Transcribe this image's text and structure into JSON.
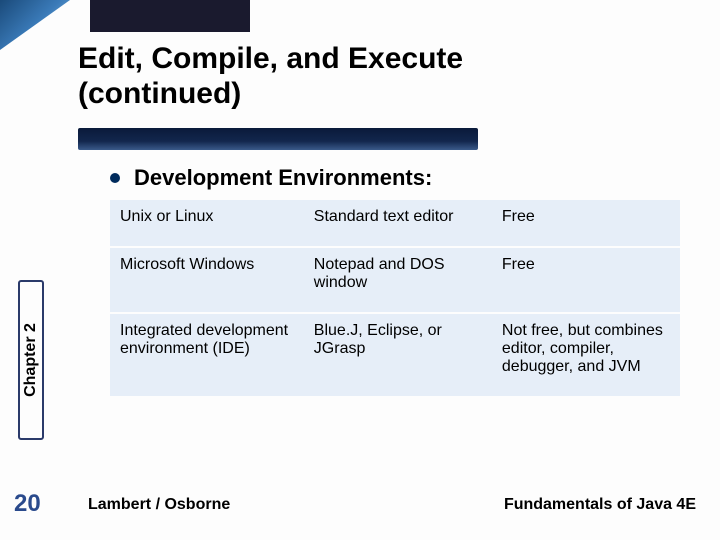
{
  "slide": {
    "title_line1": "Edit, Compile, and Execute",
    "title_line2": "(continued)",
    "bullet_heading": "Development Environments:",
    "chapter_label": "Chapter 2",
    "page_number": "20",
    "footer_left": "Lambert / Osborne",
    "footer_right": "Fundamentals of Java 4E"
  },
  "table": {
    "rows": [
      {
        "c1": "Unix or Linux",
        "c2": "Standard text editor",
        "c3": "Free"
      },
      {
        "c1": "Microsoft Windows",
        "c2": "Notepad and DOS window",
        "c3": "Free"
      },
      {
        "c1": "Integrated development environment (IDE)",
        "c2": "Blue.J, Eclipse, or JGrasp",
        "c3": "Not free, but combines editor, compiler, debugger, and JVM"
      }
    ]
  },
  "styles": {
    "accent_gradient_start": "#1a4a7a",
    "accent_gradient_end": "#8cc4e8",
    "underline_dark": "#0a1a3a",
    "table_bg": "#e6eef8",
    "page_num_color": "#2a4a8c"
  }
}
